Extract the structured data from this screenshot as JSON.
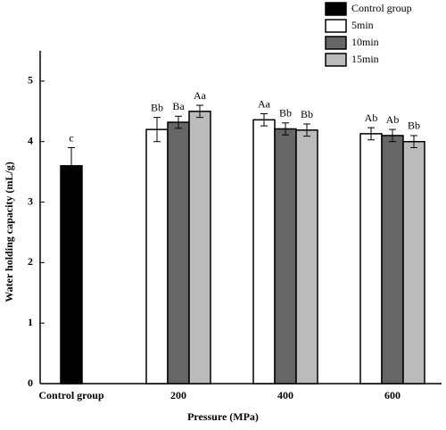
{
  "chart_data": {
    "type": "bar",
    "y_label": "Water holding capacity (mL/g)",
    "x_label": "Pressure (MPa)",
    "categories": [
      "Control group",
      "200",
      "400",
      "600"
    ],
    "series": [
      {
        "name": "Control group",
        "color": "#000000",
        "values": [
          3.6,
          null,
          null,
          null
        ],
        "errors": [
          0.3,
          null,
          null,
          null
        ],
        "annotations": [
          "c",
          null,
          null,
          null
        ]
      },
      {
        "name": "5min",
        "color": "#ffffff",
        "values": [
          null,
          4.2,
          4.36,
          4.13
        ],
        "errors": [
          null,
          0.2,
          0.1,
          0.1
        ],
        "annotations": [
          null,
          "Bb",
          "Aa",
          "Ab"
        ]
      },
      {
        "name": "10min",
        "color": "#666666",
        "values": [
          null,
          4.32,
          4.21,
          4.1
        ],
        "errors": [
          null,
          0.1,
          0.1,
          0.1
        ],
        "annotations": [
          null,
          "Ba",
          "Bb",
          "Ab"
        ]
      },
      {
        "name": "15min",
        "color": "#bbbbbb",
        "values": [
          null,
          4.5,
          4.19,
          4.0
        ],
        "errors": [
          null,
          0.1,
          0.1,
          0.1
        ],
        "annotations": [
          null,
          "Aa",
          "Bb",
          "Bb"
        ]
      }
    ],
    "ylim": [
      0,
      5.5
    ],
    "yticks": [
      0,
      1,
      2,
      3,
      4,
      5
    ],
    "legend": "top-right"
  }
}
